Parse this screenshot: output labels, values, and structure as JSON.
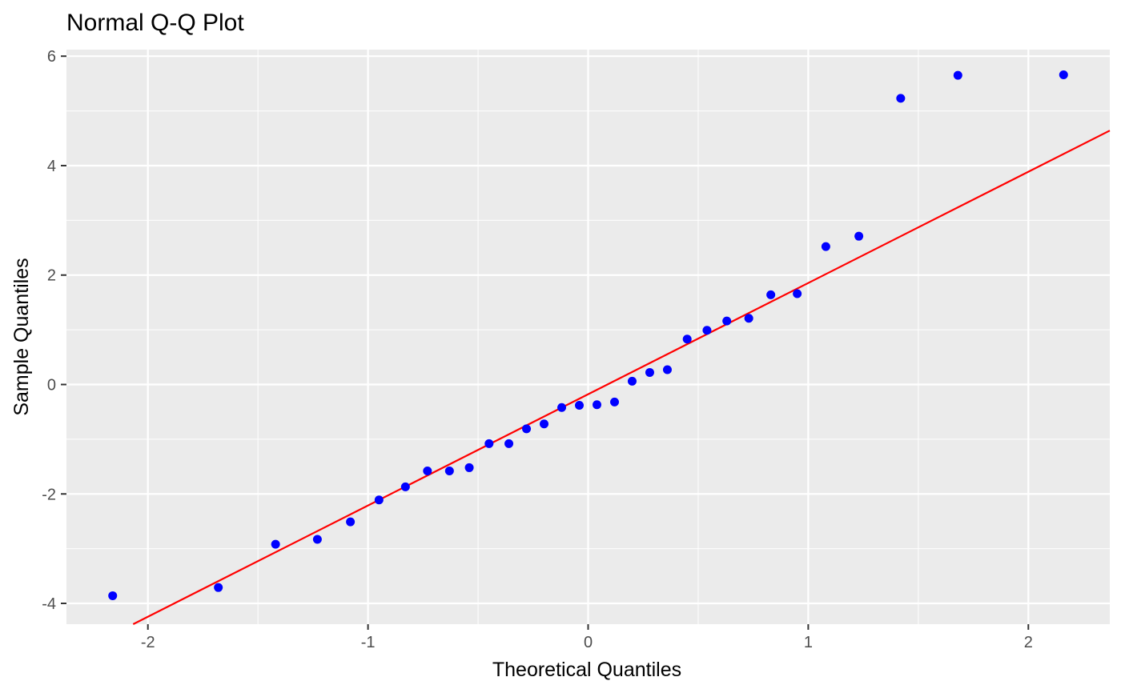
{
  "chart_data": {
    "type": "scatter",
    "title": "Normal Q-Q Plot",
    "xlabel": "Theoretical Quantiles",
    "ylabel": "Sample Quantiles",
    "xlim": [
      -2.37,
      2.37
    ],
    "ylim": [
      -4.38,
      6.12
    ],
    "grid": true,
    "x_ticks": [
      {
        "value": -2,
        "label": "-2"
      },
      {
        "value": -1,
        "label": "-1"
      },
      {
        "value": 0,
        "label": "0"
      },
      {
        "value": 1,
        "label": "1"
      },
      {
        "value": 2,
        "label": "2"
      }
    ],
    "y_ticks": [
      {
        "value": -4,
        "label": "-4"
      },
      {
        "value": -2,
        "label": "-2"
      },
      {
        "value": 0,
        "label": "0"
      },
      {
        "value": 2,
        "label": "2"
      },
      {
        "value": 4,
        "label": "4"
      },
      {
        "value": 6,
        "label": "6"
      }
    ],
    "points": [
      {
        "x": -2.16,
        "y": -3.86
      },
      {
        "x": -1.68,
        "y": -3.71
      },
      {
        "x": -1.42,
        "y": -2.92
      },
      {
        "x": -1.23,
        "y": -2.83
      },
      {
        "x": -1.08,
        "y": -2.51
      },
      {
        "x": -0.95,
        "y": -2.11
      },
      {
        "x": -0.83,
        "y": -1.87
      },
      {
        "x": -0.73,
        "y": -1.58
      },
      {
        "x": -0.63,
        "y": -1.58
      },
      {
        "x": -0.54,
        "y": -1.52
      },
      {
        "x": -0.45,
        "y": -1.08
      },
      {
        "x": -0.36,
        "y": -1.08
      },
      {
        "x": -0.28,
        "y": -0.81
      },
      {
        "x": -0.2,
        "y": -0.72
      },
      {
        "x": -0.12,
        "y": -0.42
      },
      {
        "x": -0.04,
        "y": -0.38
      },
      {
        "x": 0.04,
        "y": -0.37
      },
      {
        "x": 0.12,
        "y": -0.32
      },
      {
        "x": 0.2,
        "y": 0.06
      },
      {
        "x": 0.28,
        "y": 0.22
      },
      {
        "x": 0.36,
        "y": 0.27
      },
      {
        "x": 0.45,
        "y": 0.83
      },
      {
        "x": 0.54,
        "y": 0.99
      },
      {
        "x": 0.63,
        "y": 1.16
      },
      {
        "x": 0.73,
        "y": 1.21
      },
      {
        "x": 0.83,
        "y": 1.64
      },
      {
        "x": 0.95,
        "y": 1.66
      },
      {
        "x": 1.08,
        "y": 2.52
      },
      {
        "x": 1.23,
        "y": 2.71
      },
      {
        "x": 1.42,
        "y": 5.23
      },
      {
        "x": 1.68,
        "y": 5.65
      },
      {
        "x": 2.16,
        "y": 5.66
      }
    ],
    "reference_line": {
      "intercept": -0.178,
      "slope": 2.033
    },
    "colors": {
      "panel": "#ebebeb",
      "grid": "#ffffff",
      "points": "#0000ff",
      "line": "#ff0000",
      "tick_label": "#4d4d4d",
      "tick_mark": "#333333"
    }
  }
}
